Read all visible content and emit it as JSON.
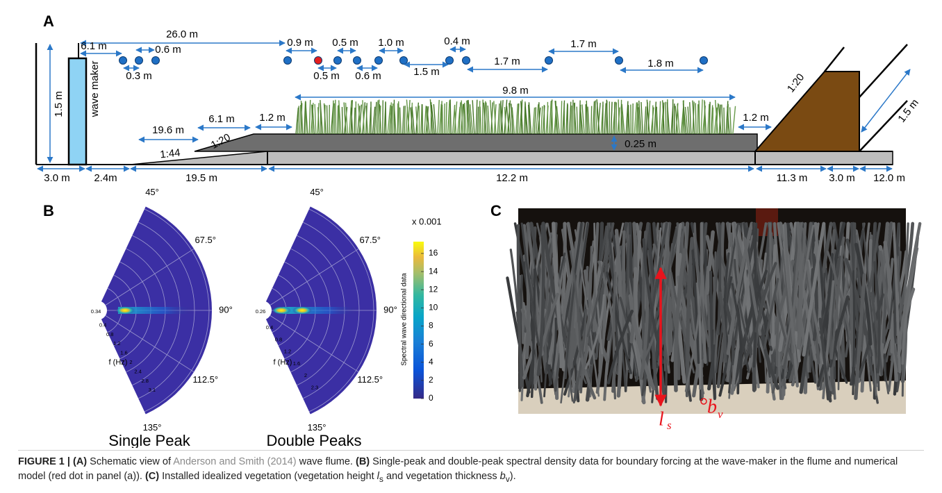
{
  "panel_a": {
    "label": "A",
    "wave_maker": "wave maker",
    "dimensions": [
      "1.5 m",
      "26.0 m",
      "6.1 m",
      "0.6 m",
      "0.3 m",
      "0.9 m",
      "0.5 m",
      "0.5 m",
      "0.6 m",
      "1.0 m",
      "1.5 m",
      "0.4 m",
      "1.7 m",
      "1.7 m",
      "1.8 m",
      "9.8 m",
      "19.6 m",
      "6.1 m",
      "1.2 m",
      "1.2 m",
      "0.25 m",
      "1.5 m",
      "3.0 m",
      "2.4m",
      "19.5 m",
      "12.2 m",
      "11.3 m",
      "3.0 m",
      "12.0 m"
    ],
    "slopes": [
      "1:44",
      "1:20",
      "1:20"
    ]
  },
  "panel_b": {
    "label": "B",
    "plots": [
      {
        "title": "Single Peak",
        "angles": [
          "45°",
          "67.5°",
          "90°",
          "112.5°",
          "135°"
        ],
        "radial_labels": [
          "0.34",
          "0.4",
          "0.8",
          "1.2",
          "1.6",
          "2",
          "2.4",
          "2.8",
          "3.1"
        ],
        "axis_label": "f (Hz)"
      },
      {
        "title": "Double Peaks",
        "angles": [
          "45°",
          "67.5°",
          "90°",
          "112.5°",
          "135°"
        ],
        "radial_labels": [
          "0.26",
          "0.4",
          "0.8",
          "1.2",
          "1.6",
          "2",
          "2.3"
        ],
        "axis_label": "f (Hz)"
      }
    ],
    "colorbar": {
      "title": "Spectral wave directional data",
      "multiplier": "x 0.001",
      "lim": [
        0,
        17.3
      ],
      "ticks": [
        0,
        2,
        4,
        6,
        8,
        10,
        12,
        14,
        16
      ]
    }
  },
  "panel_c": {
    "label": "C",
    "height_symbol": "l",
    "height_subscript": "s",
    "thickness_symbol": "b",
    "thickness_subscript": "v"
  },
  "caption": {
    "figure": "FIGURE 1 | (A)",
    "a_text": " Schematic view of ",
    "reference": "Anderson and Smith (2014)",
    "a_text2": " wave flume. ",
    "b_label": "(B)",
    "b_text": " Single-peak and double-peak spectral density data for boundary forcing at the wave-maker in the flume and numerical model (red dot in panel (a)). ",
    "c_label": "(C)",
    "c_text": " Installed idealized vegetation (vegetation height ",
    "c_sym1": "l",
    "c_sub1": "s",
    "c_text2": " and vegetation thickness ",
    "c_sym2": "b",
    "c_sub2": "v",
    "c_text3": ")."
  }
}
